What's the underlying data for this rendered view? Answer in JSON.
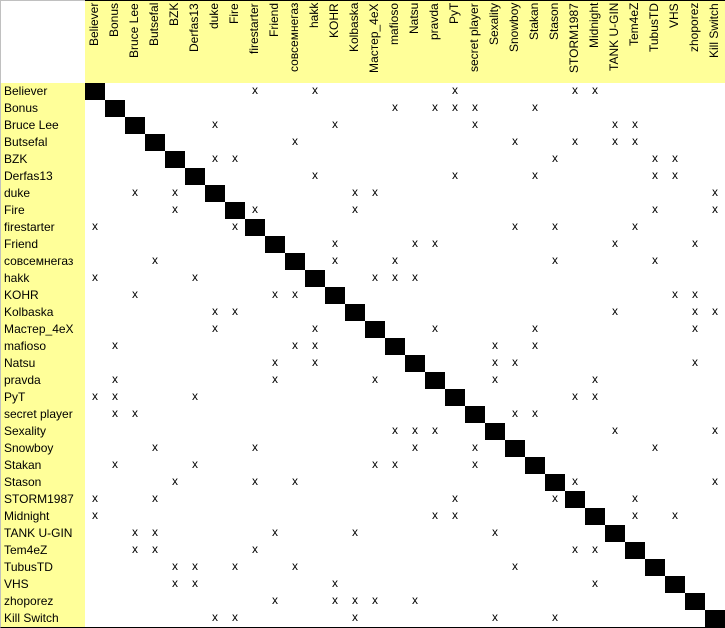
{
  "mark_symbol": "x",
  "colors": {
    "header_bg": "#ffff99",
    "diagonal": "#000000",
    "grid": "#000000"
  },
  "players": [
    "Believer",
    "Bonus",
    "Bruce Lee",
    "Butsefal",
    "BZK",
    "Derfas13",
    "duke",
    "Fire",
    "firestarter",
    "Friend",
    "совсемнегаз",
    "hakk",
    "KOHR",
    "Kolbaska",
    "Мастер_4eX",
    "mafioso",
    "Natsu",
    "pravda",
    "PyT",
    "secret player",
    "Sexality",
    "Snowboy",
    "Stakan",
    "Stason",
    "STORM1987",
    "Midnight",
    "TANK U-GIN",
    "Tem4eZ",
    "TubusTD",
    "VHS",
    "zhoporez",
    "Kill Switch"
  ],
  "marks": [
    [
      8,
      11,
      18,
      24,
      25
    ],
    [
      15,
      17,
      18,
      19,
      22
    ],
    [
      6,
      12,
      19,
      26,
      27
    ],
    [
      10,
      21,
      24,
      26,
      27
    ],
    [
      6,
      7,
      23,
      28,
      29
    ],
    [
      11,
      18,
      22,
      28,
      29
    ],
    [
      2,
      4,
      13,
      14,
      31
    ],
    [
      4,
      8,
      13,
      28,
      31
    ],
    [
      0,
      7,
      21,
      23,
      27
    ],
    [
      12,
      16,
      17,
      26,
      30
    ],
    [
      3,
      12,
      15,
      23,
      28
    ],
    [
      0,
      5,
      14,
      15,
      16
    ],
    [
      2,
      9,
      10,
      29,
      30
    ],
    [
      6,
      7,
      26,
      30,
      31
    ],
    [
      6,
      11,
      17,
      22,
      30
    ],
    [
      1,
      10,
      11,
      20,
      22
    ],
    [
      9,
      11,
      20,
      21,
      30
    ],
    [
      1,
      9,
      14,
      20,
      25
    ],
    [
      0,
      1,
      5,
      24,
      25
    ],
    [
      1,
      2,
      21,
      22
    ],
    [
      15,
      16,
      17,
      26,
      31
    ],
    [
      3,
      8,
      16,
      19,
      28
    ],
    [
      1,
      5,
      14,
      15,
      19
    ],
    [
      4,
      8,
      10,
      24,
      31
    ],
    [
      0,
      3,
      18,
      23,
      27
    ],
    [
      0,
      17,
      18,
      27,
      29
    ],
    [
      2,
      3,
      9,
      13,
      20
    ],
    [
      2,
      3,
      8,
      24,
      25
    ],
    [
      4,
      5,
      7,
      10,
      21
    ],
    [
      4,
      5,
      12,
      25
    ],
    [
      9,
      12,
      13,
      14,
      16
    ],
    [
      6,
      7,
      13,
      20,
      23
    ]
  ]
}
